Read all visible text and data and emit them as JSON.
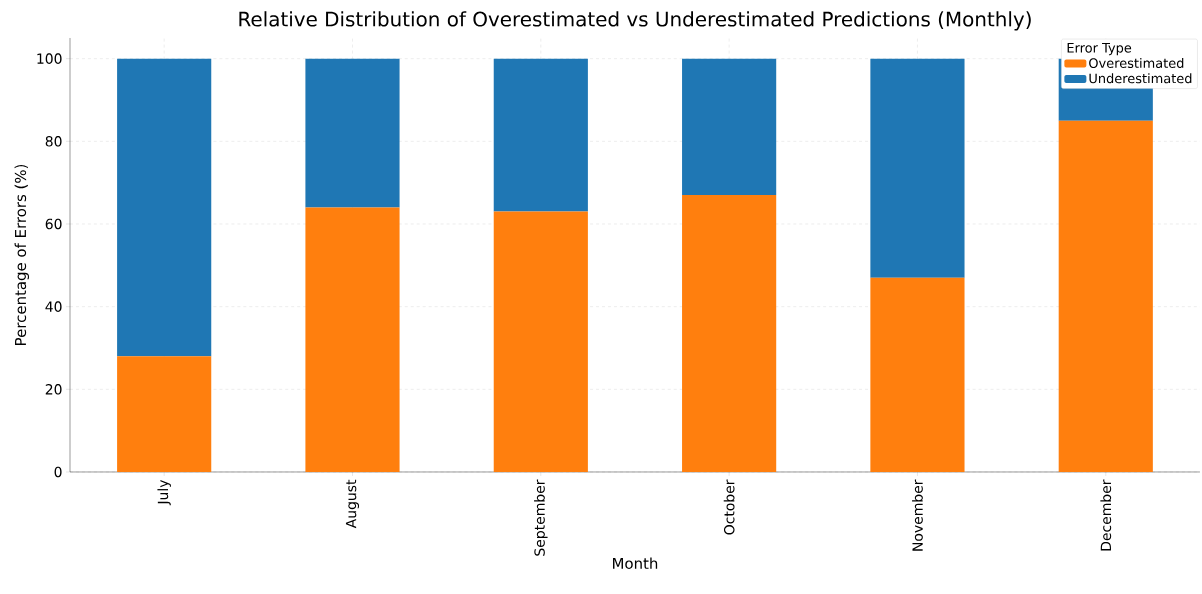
{
  "chart_data": {
    "type": "bar",
    "stacked": true,
    "title": "Relative Distribution of Overestimated vs Underestimated Predictions (Monthly)",
    "xlabel": "Month",
    "ylabel": "Percentage of Errors (%)",
    "legend_title": "Error Type",
    "categories": [
      "July",
      "August",
      "September",
      "October",
      "November",
      "December"
    ],
    "series": [
      {
        "name": "Overestimated",
        "color": "#ff7f0e",
        "values": [
          28,
          64,
          63,
          67,
          47,
          85
        ]
      },
      {
        "name": "Underestimated",
        "color": "#1f77b4",
        "values": [
          72,
          36,
          37,
          33,
          53,
          15
        ]
      }
    ],
    "ylim": [
      0,
      105
    ],
    "yticks": [
      0,
      20,
      40,
      60,
      80,
      100
    ],
    "grid": true,
    "legend": "top right"
  }
}
